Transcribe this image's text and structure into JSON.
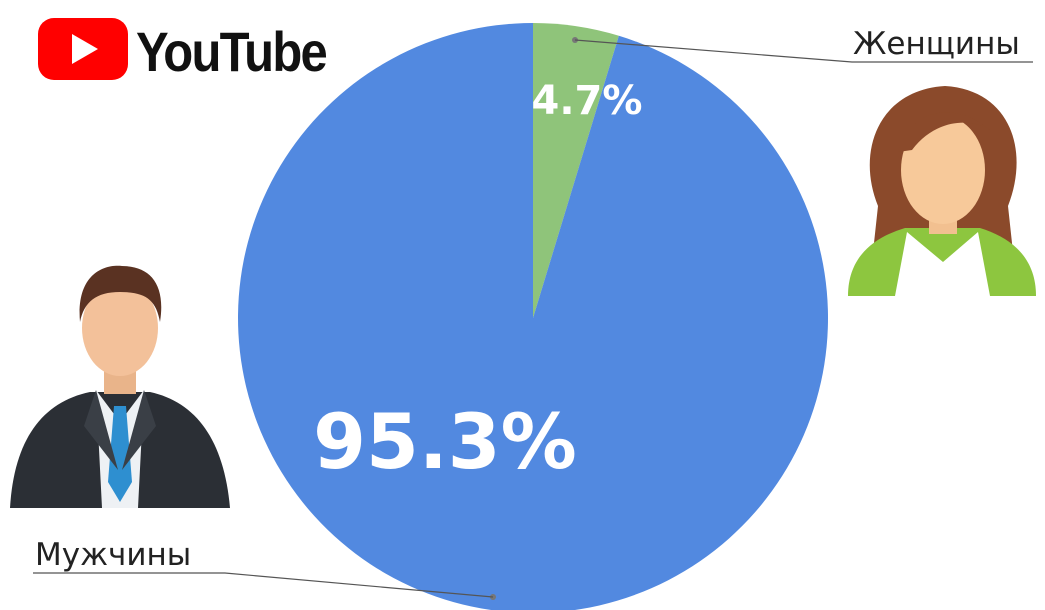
{
  "brand": {
    "name": "YouTube",
    "colors": {
      "play_button": "#ff0000",
      "play_arrow": "#ffffff",
      "text": "#111111"
    }
  },
  "chart_data": {
    "type": "pie",
    "title": "",
    "start": "top",
    "direction": "clockwise",
    "slices": [
      {
        "label": "Женщины",
        "value": 4.7,
        "display": "4.7%",
        "color": "#8fc47a"
      },
      {
        "label": "Мужчины",
        "value": 95.3,
        "display": "95.3%",
        "color": "#5289e0"
      }
    ],
    "label_color": "#ffffff",
    "leader_line_color": "#555555",
    "icons": [
      "woman-avatar-icon",
      "man-in-suit-avatar-icon"
    ]
  }
}
